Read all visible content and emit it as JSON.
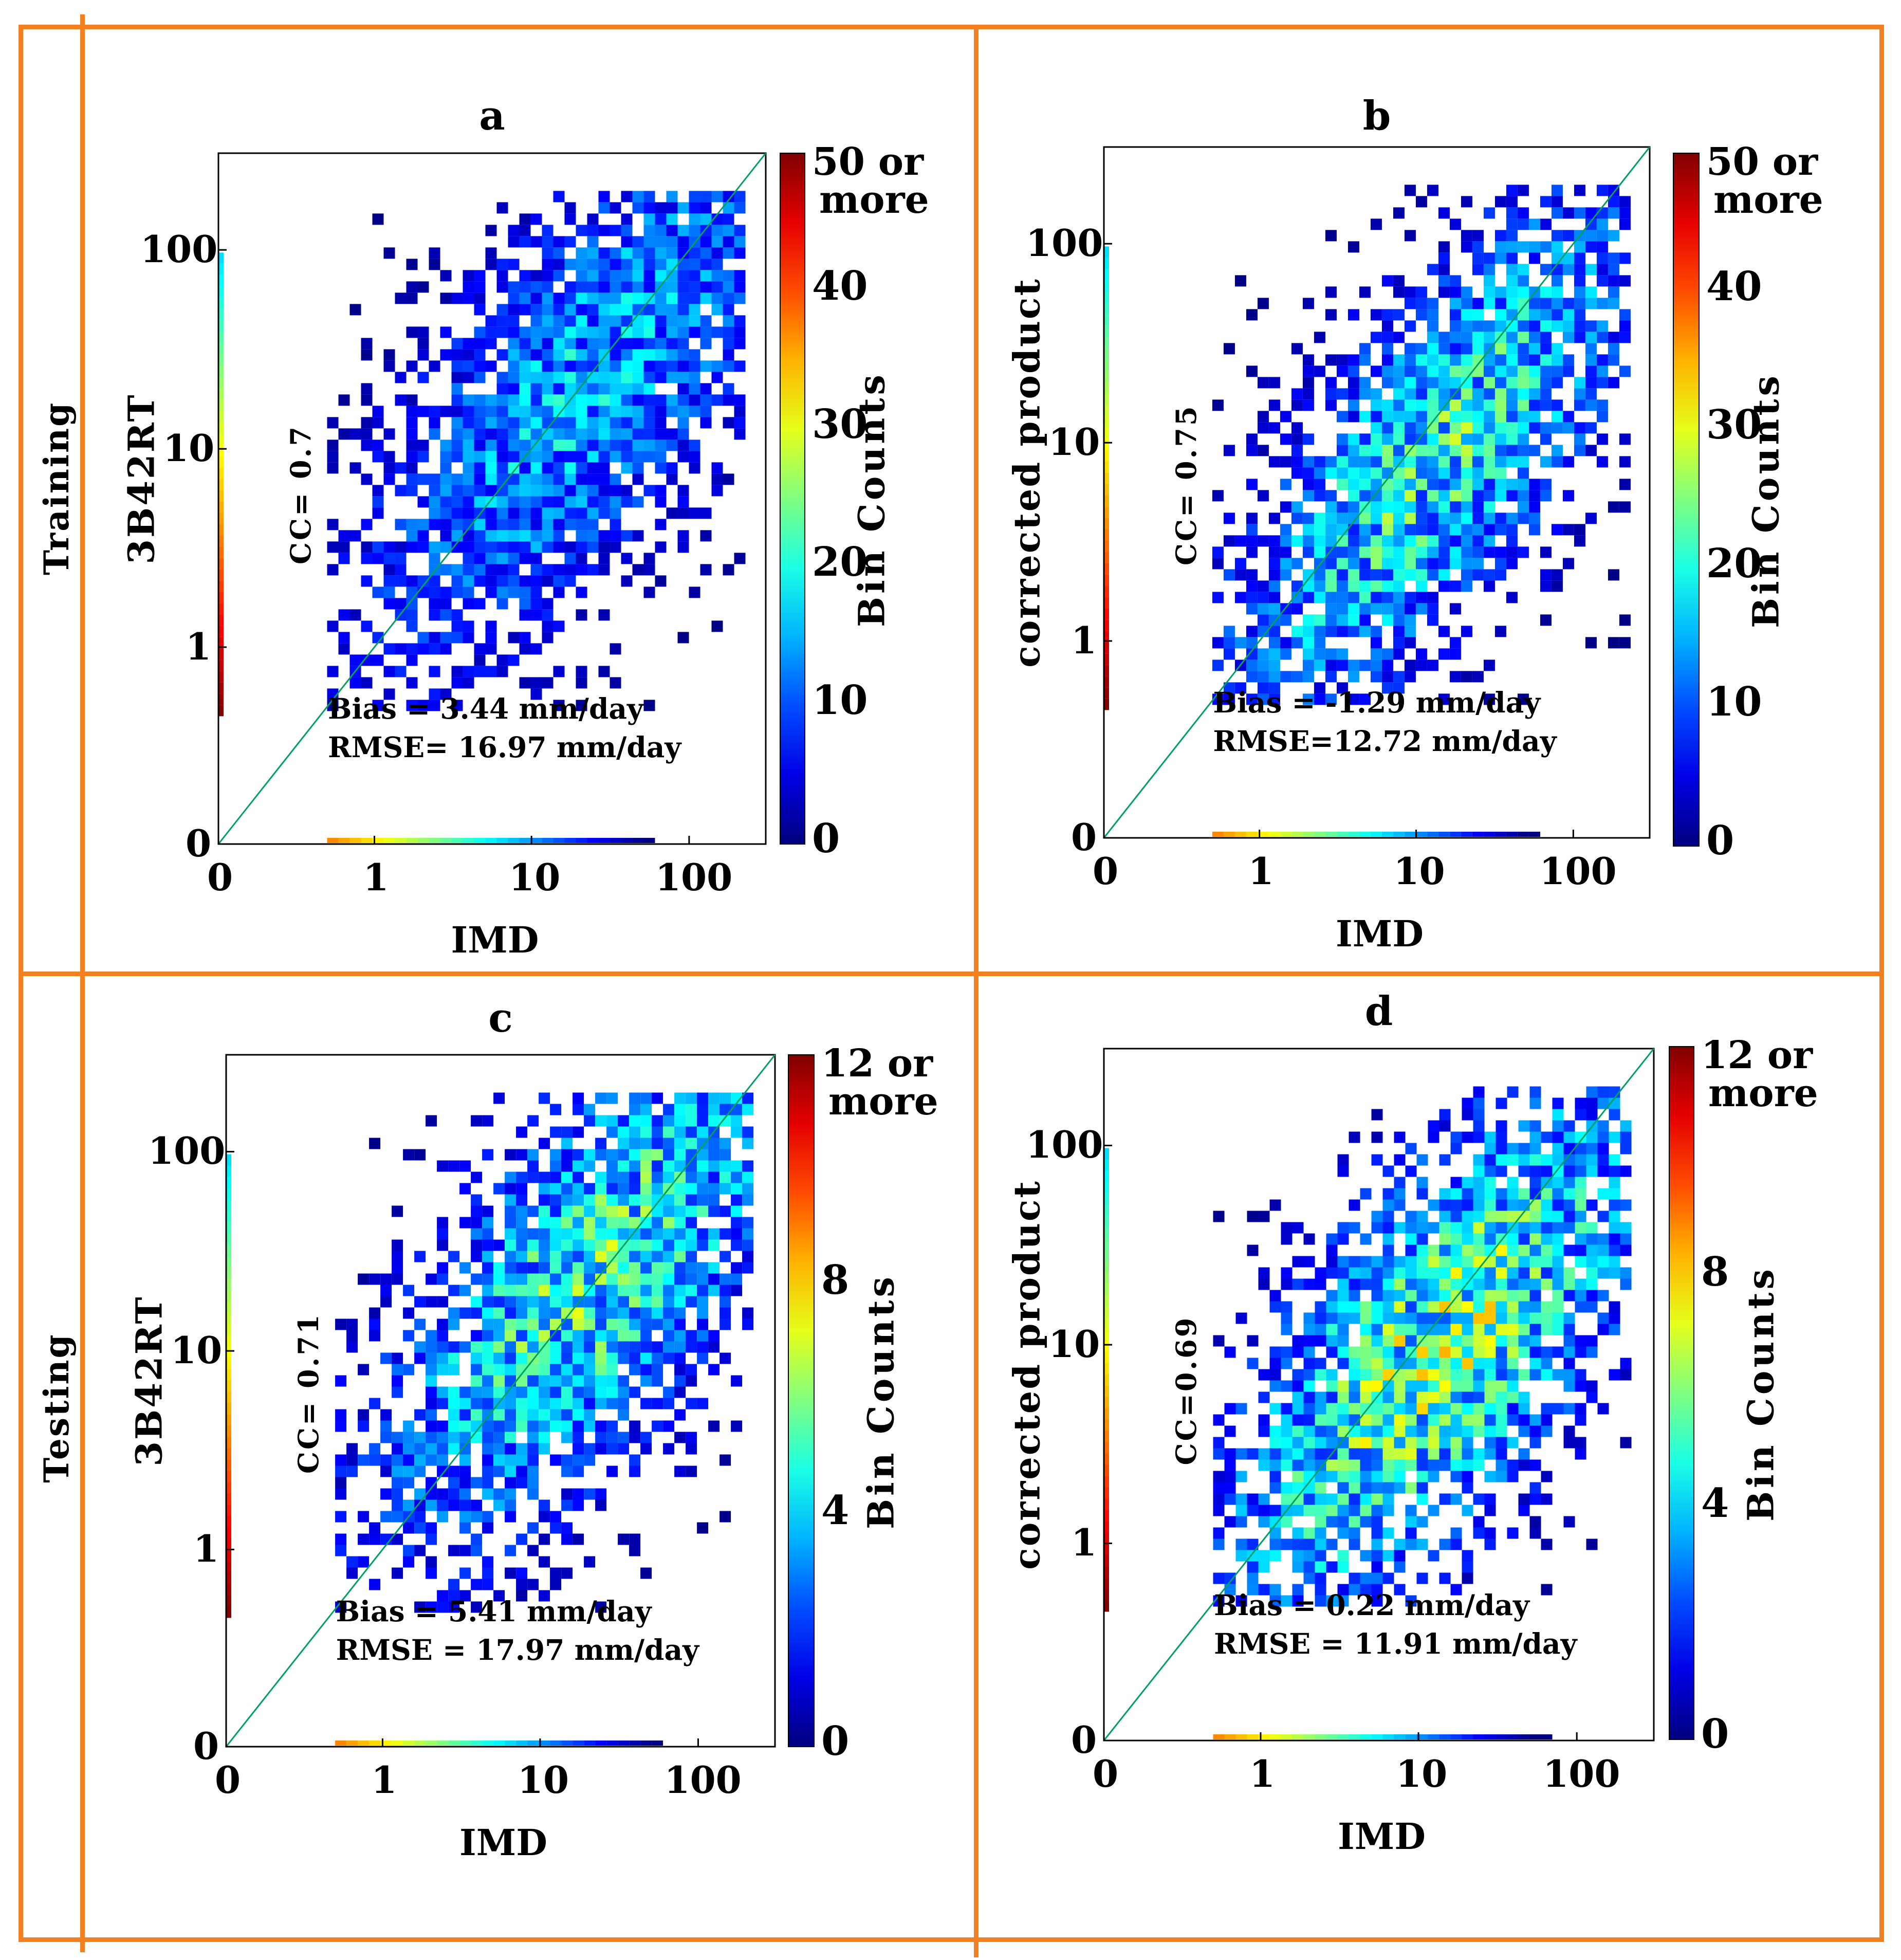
{
  "figure": {
    "row_labels": [
      "Training",
      "Testing"
    ],
    "frame_color": "#f28021"
  },
  "chart_data": [
    {
      "type": "heatmap",
      "panel": "a",
      "title": "a",
      "xlabel": "IMD",
      "ylabel": "3B42RT",
      "x_ticks": [
        "0",
        "1",
        "10",
        "100"
      ],
      "y_ticks": [
        "0",
        "1",
        "10",
        "100"
      ],
      "axis_scale": "symlog",
      "xlim": [
        0,
        300
      ],
      "ylim": [
        0,
        300
      ],
      "cc_label": "CC= 0.7",
      "bias_label": "Bias = 3.44 mm/day",
      "rmse_label": "RMSE= 16.97 mm/day",
      "colorbar": {
        "label": "Bin Counts",
        "ticks": [
          "0",
          "10",
          "20",
          "30",
          "40"
        ],
        "top_label": [
          "50 or",
          "more"
        ],
        "range": [
          0,
          50
        ]
      },
      "density": {
        "center_x": 20,
        "center_y": 22,
        "spread": 1.05,
        "corr": 0.72,
        "peak": 18,
        "seed": 11
      },
      "x_min_mm": 0.5,
      "y_min_mm": 0.5,
      "x_max_mm": 200,
      "y_max_mm": 200
    },
    {
      "type": "heatmap",
      "panel": "b",
      "title": "b",
      "xlabel": "IMD",
      "ylabel": "corrected product",
      "x_ticks": [
        "0",
        "1",
        "10",
        "100"
      ],
      "y_ticks": [
        "0",
        "1",
        "10",
        "100"
      ],
      "axis_scale": "symlog",
      "xlim": [
        0,
        300
      ],
      "ylim": [
        0,
        300
      ],
      "cc_label": "CC= 0.75",
      "bias_label": "Bias = -1.29 mm/day",
      "rmse_label": "RMSE=12.72 mm/day",
      "colorbar": {
        "label": "Bin Counts",
        "ticks": [
          "0",
          "10",
          "20",
          "30",
          "40"
        ],
        "top_label": [
          "50 or",
          "more"
        ],
        "range": [
          0,
          50
        ]
      },
      "density": {
        "center_x": 12,
        "center_y": 9,
        "spread": 1.0,
        "corr": 0.76,
        "peak": 24,
        "seed": 23
      },
      "x_min_mm": 0.5,
      "y_min_mm": 0.5,
      "x_max_mm": 200,
      "y_max_mm": 200
    },
    {
      "type": "heatmap",
      "panel": "c",
      "title": "c",
      "xlabel": "IMD",
      "ylabel": "3B42RT",
      "x_ticks": [
        "0",
        "1",
        "10",
        "100"
      ],
      "y_ticks": [
        "0",
        "1",
        "10",
        "100"
      ],
      "axis_scale": "symlog",
      "xlim": [
        0,
        300
      ],
      "ylim": [
        0,
        300
      ],
      "cc_label": "CC= 0.71",
      "bias_label": "Bias = 5.41 mm/day",
      "rmse_label": "RMSE = 17.97 mm/day",
      "colorbar": {
        "label": "Bin Counts",
        "ticks": [
          "0",
          "4",
          "8"
        ],
        "top_label": [
          "12 or",
          "more"
        ],
        "range": [
          0,
          12
        ]
      },
      "density": {
        "center_x": 20,
        "center_y": 25,
        "spread": 1.0,
        "corr": 0.7,
        "peak": 6,
        "seed": 37
      },
      "x_min_mm": 0.5,
      "y_min_mm": 0.5,
      "x_max_mm": 200,
      "y_max_mm": 200
    },
    {
      "type": "heatmap",
      "panel": "d",
      "title": "d",
      "xlabel": "IMD",
      "ylabel": "corrected product",
      "x_ticks": [
        "0",
        "1",
        "10",
        "100"
      ],
      "y_ticks": [
        "0",
        "1",
        "10",
        "100"
      ],
      "axis_scale": "symlog",
      "xlim": [
        0,
        300
      ],
      "ylim": [
        0,
        300
      ],
      "cc_label": "CC=0.69",
      "bias_label": "Bias = 0.22 mm/day",
      "rmse_label": "RMSE = 11.91 mm/day",
      "colorbar": {
        "label": "Bin Counts",
        "ticks": [
          "0",
          "4",
          "8"
        ],
        "top_label": [
          "12 or",
          "more"
        ],
        "range": [
          0,
          12
        ]
      },
      "density": {
        "center_x": 12,
        "center_y": 10,
        "spread": 1.0,
        "corr": 0.7,
        "peak": 7,
        "seed": 53
      },
      "x_min_mm": 0.5,
      "y_min_mm": 0.5,
      "x_max_mm": 200,
      "y_max_mm": 200
    }
  ]
}
